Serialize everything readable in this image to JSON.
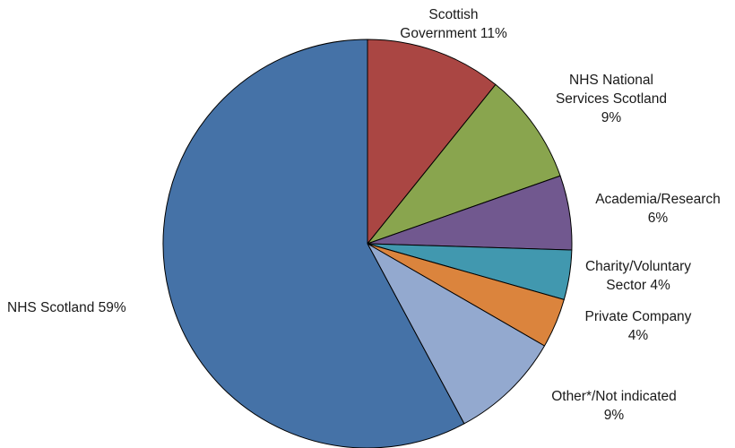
{
  "chart_data": {
    "type": "pie",
    "title": "",
    "start": "clockwise from 12 o'clock",
    "slices": [
      {
        "name": "Scottish Government",
        "value": 11,
        "color": "#AA4643",
        "label_lines": [
          "Scottish",
          "Government 11%"
        ]
      },
      {
        "name": "NHS National Services Scotland",
        "value": 9,
        "color": "#89A54E",
        "label_lines": [
          "NHS National",
          "Services Scotland",
          "9%"
        ]
      },
      {
        "name": "Academia/Research",
        "value": 6,
        "color": "#71588F",
        "label_lines": [
          "Academia/Research",
          "6%"
        ]
      },
      {
        "name": "Charity/Voluntary Sector",
        "value": 4,
        "color": "#4198AF",
        "label_lines": [
          "Charity/Voluntary",
          "Sector 4%"
        ]
      },
      {
        "name": "Private Company",
        "value": 4,
        "color": "#DB843D",
        "label_lines": [
          "Private Company",
          "4%"
        ]
      },
      {
        "name": "Other*/Not indicated",
        "value": 9,
        "color": "#93A9CF",
        "label_lines": [
          "Other*/Not indicated",
          "9%"
        ]
      },
      {
        "name": "NHS Scotland",
        "value": 59,
        "color": "#4572A7",
        "label_lines": [
          "NHS Scotland 59%"
        ]
      }
    ]
  }
}
